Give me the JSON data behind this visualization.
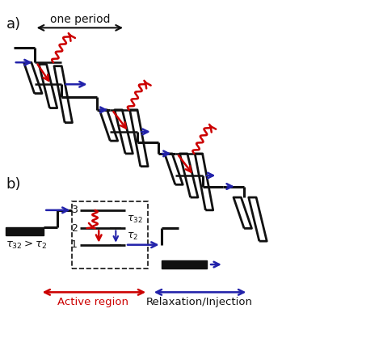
{
  "figsize": [
    4.74,
    4.34
  ],
  "dpi": 100,
  "bg_color": "#ffffff",
  "label_a": "a)",
  "label_b": "b)",
  "one_period_text": "one period",
  "active_region": "Active region",
  "relax_inject": "Relaxation/Injection",
  "tau32_gt": "$\\tau_{32} > \\tau_2$",
  "blue": "#2222aa",
  "red": "#cc0000",
  "black": "#111111"
}
